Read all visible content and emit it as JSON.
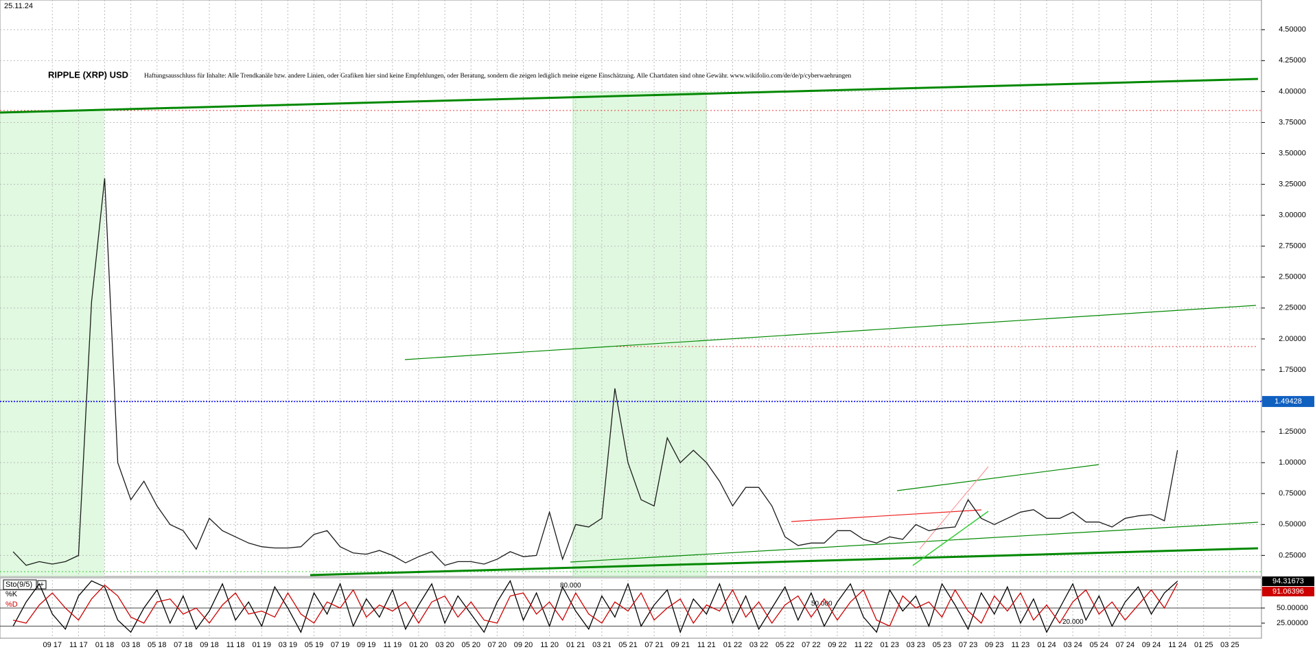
{
  "chart_data": [
    {
      "type": "line",
      "title": "RIPPLE (XRP) USD",
      "date": "25.11.24",
      "subtitle": "Haftungsausschluss für Inhalte: Alle Trendkanäle bzw. andere Linien, oder Grafiken hier sind keine Empfehlungen, oder Beratung, sondern die zeigen lediglich meine eigene Einschätzung. Alle Chartdaten sind ohne Gewähr. www.wikifolio.com/de/de/p/cyberwaehrungen",
      "x": [
        "06 17",
        "07 17",
        "08 17",
        "09 17",
        "10 17",
        "11 17",
        "12 17",
        "01 18",
        "02 18",
        "03 18",
        "04 18",
        "05 18",
        "06 18",
        "07 18",
        "08 18",
        "09 18",
        "10 18",
        "11 18",
        "12 18",
        "01 19",
        "02 19",
        "03 19",
        "04 19",
        "05 19",
        "06 19",
        "07 19",
        "08 19",
        "09 19",
        "10 19",
        "11 19",
        "12 19",
        "01 20",
        "02 20",
        "03 20",
        "04 20",
        "05 20",
        "06 20",
        "07 20",
        "08 20",
        "09 20",
        "10 20",
        "11 20",
        "12 20",
        "01 21",
        "02 21",
        "03 21",
        "04 21",
        "05 21",
        "06 21",
        "07 21",
        "08 21",
        "09 21",
        "10 21",
        "11 21",
        "12 21",
        "01 22",
        "02 22",
        "03 22",
        "04 22",
        "05 22",
        "06 22",
        "07 22",
        "08 22",
        "09 22",
        "10 22",
        "11 22",
        "12 22",
        "01 23",
        "02 23",
        "03 23",
        "04 23",
        "05 23",
        "06 23",
        "07 23",
        "08 23",
        "09 23",
        "10 23",
        "11 23",
        "12 23",
        "01 24",
        "02 24",
        "03 24",
        "04 24",
        "05 24",
        "06 24",
        "07 24",
        "08 24",
        "09 24",
        "10 24",
        "11 24"
      ],
      "series": [
        {
          "name": "XRP",
          "color": "#1a1a1a",
          "values": [
            0.28,
            0.17,
            0.2,
            0.18,
            0.2,
            0.25,
            2.3,
            3.3,
            1.0,
            0.7,
            0.85,
            0.65,
            0.5,
            0.45,
            0.3,
            0.55,
            0.45,
            0.4,
            0.35,
            0.32,
            0.31,
            0.31,
            0.32,
            0.42,
            0.45,
            0.32,
            0.27,
            0.26,
            0.29,
            0.25,
            0.19,
            0.24,
            0.28,
            0.17,
            0.2,
            0.2,
            0.18,
            0.22,
            0.28,
            0.24,
            0.25,
            0.6,
            0.22,
            0.5,
            0.48,
            0.55,
            1.6,
            1.0,
            0.7,
            0.65,
            1.2,
            1.0,
            1.1,
            1.0,
            0.85,
            0.65,
            0.8,
            0.8,
            0.65,
            0.4,
            0.33,
            0.35,
            0.35,
            0.45,
            0.45,
            0.38,
            0.35,
            0.4,
            0.38,
            0.5,
            0.45,
            0.47,
            0.48,
            0.7,
            0.55,
            0.5,
            0.55,
            0.6,
            0.62,
            0.55,
            0.55,
            0.6,
            0.52,
            0.52,
            0.48,
            0.55,
            0.57,
            0.58,
            0.53,
            1.1
          ]
        }
      ],
      "last_price": 1.49428,
      "last_price_color": "#0000ff",
      "xlim": [
        "05 17",
        "05 25"
      ],
      "ylim": [
        0.08,
        4.74
      ],
      "yticks": [
        {
          "value": 0.25,
          "label": "0.25000"
        },
        {
          "value": 0.5,
          "label": "0.50000"
        },
        {
          "value": 0.75,
          "label": "0.75000"
        },
        {
          "value": 1,
          "label": "1.00000"
        },
        {
          "value": 1.25,
          "label": "1.25000"
        },
        {
          "value": 1.5,
          "label": "1.50000"
        },
        {
          "value": 1.75,
          "label": "1.75000"
        },
        {
          "value": 2,
          "label": "2.00000"
        },
        {
          "value": 2.25,
          "label": "2.25000"
        },
        {
          "value": 2.5,
          "label": "2.50000"
        },
        {
          "value": 2.75,
          "label": "2.75000"
        },
        {
          "value": 3,
          "label": "3.00000"
        },
        {
          "value": 3.25,
          "label": "3.25000"
        },
        {
          "value": 3.5,
          "label": "3.50000"
        },
        {
          "value": 3.75,
          "label": "3.75000"
        },
        {
          "value": 4,
          "label": "4.00000"
        },
        {
          "value": 4.25,
          "label": "4.25000"
        },
        {
          "value": 4.5,
          "label": "4.50000"
        }
      ],
      "grid": true
    },
    {
      "type": "line",
      "title": "Sto(9/5)",
      "x": [
        "06 17",
        "07 17",
        "08 17",
        "09 17",
        "10 17",
        "11 17",
        "12 17",
        "01 18",
        "02 18",
        "03 18",
        "04 18",
        "05 18",
        "06 18",
        "07 18",
        "08 18",
        "09 18",
        "10 18",
        "11 18",
        "12 18",
        "01 19",
        "02 19",
        "03 19",
        "04 19",
        "05 19",
        "06 19",
        "07 19",
        "08 19",
        "09 19",
        "10 19",
        "11 19",
        "12 19",
        "01 20",
        "02 20",
        "03 20",
        "04 20",
        "05 20",
        "06 20",
        "07 20",
        "08 20",
        "09 20",
        "10 20",
        "11 20",
        "12 20",
        "01 21",
        "02 21",
        "03 21",
        "04 21",
        "05 21",
        "06 21",
        "07 21",
        "08 21",
        "09 21",
        "10 21",
        "11 21",
        "12 21",
        "01 22",
        "02 22",
        "03 22",
        "04 22",
        "05 22",
        "06 22",
        "07 22",
        "08 22",
        "09 22",
        "10 22",
        "11 22",
        "12 22",
        "01 23",
        "02 23",
        "03 23",
        "04 23",
        "05 23",
        "06 23",
        "07 23",
        "08 23",
        "09 23",
        "10 23",
        "11 23",
        "12 23",
        "01 24",
        "02 24",
        "03 24",
        "04 24",
        "05 24",
        "06 24",
        "07 24",
        "08 24",
        "09 24",
        "10 24",
        "11 24"
      ],
      "series": [
        {
          "name": "%K",
          "color": "#000000",
          "values": [
            20,
            60,
            90,
            40,
            15,
            70,
            95,
            85,
            30,
            10,
            50,
            80,
            25,
            70,
            15,
            45,
            90,
            30,
            60,
            20,
            85,
            50,
            10,
            75,
            40,
            90,
            20,
            65,
            35,
            80,
            15,
            55,
            90,
            25,
            70,
            40,
            10,
            60,
            95,
            30,
            75,
            20,
            85,
            45,
            15,
            70,
            35,
            90,
            20,
            55,
            80,
            10,
            65,
            40,
            90,
            25,
            70,
            15,
            50,
            85,
            30,
            75,
            20,
            60,
            90,
            35,
            10,
            80,
            45,
            70,
            20,
            90,
            55,
            15,
            75,
            40,
            85,
            25,
            65,
            10,
            50,
            90,
            30,
            70,
            20,
            60,
            85,
            40,
            75,
            94.31673
          ]
        },
        {
          "name": "%D",
          "color": "#cc0000",
          "values": [
            30,
            25,
            55,
            75,
            50,
            30,
            65,
            88,
            70,
            35,
            25,
            60,
            65,
            40,
            50,
            25,
            55,
            75,
            40,
            45,
            35,
            75,
            40,
            25,
            60,
            50,
            80,
            35,
            55,
            45,
            60,
            25,
            60,
            70,
            35,
            60,
            30,
            25,
            70,
            75,
            40,
            60,
            30,
            75,
            40,
            25,
            60,
            45,
            75,
            30,
            50,
            65,
            25,
            55,
            45,
            80,
            35,
            60,
            25,
            55,
            70,
            35,
            65,
            30,
            60,
            80,
            30,
            20,
            70,
            50,
            60,
            35,
            80,
            45,
            25,
            70,
            45,
            75,
            30,
            55,
            25,
            60,
            80,
            40,
            60,
            30,
            55,
            80,
            50,
            91.06396
          ]
        }
      ],
      "levels": [
        {
          "value": 80,
          "label": "80.000"
        },
        {
          "value": 50,
          "label": "50.000"
        },
        {
          "value": 20,
          "label": "20.000"
        }
      ],
      "xlim": [
        "05 17",
        "05 25"
      ],
      "xticks": [
        "09 17",
        "11 17",
        "01 18",
        "03 18",
        "05 18",
        "07 18",
        "09 18",
        "11 18",
        "01 19",
        "03 19",
        "05 19",
        "07 19",
        "09 19",
        "11 19",
        "01 20",
        "03 20",
        "05 20",
        "07 20",
        "09 20",
        "11 20",
        "01 21",
        "03 21",
        "05 21",
        "07 21",
        "09 21",
        "11 21",
        "01 22",
        "03 22",
        "05 22",
        "07 22",
        "09 22",
        "11 22",
        "01 23",
        "03 23",
        "05 23",
        "07 23",
        "09 23",
        "11 23",
        "01 24",
        "03 24",
        "05 24",
        "07 24",
        "09 24",
        "11 24",
        "01 25",
        "03 25"
      ],
      "ylim": [
        0,
        100
      ],
      "yticks": [
        {
          "value": 25,
          "label": "25.00000"
        },
        {
          "value": 50,
          "label": "50.00000"
        }
      ]
    }
  ]
}
